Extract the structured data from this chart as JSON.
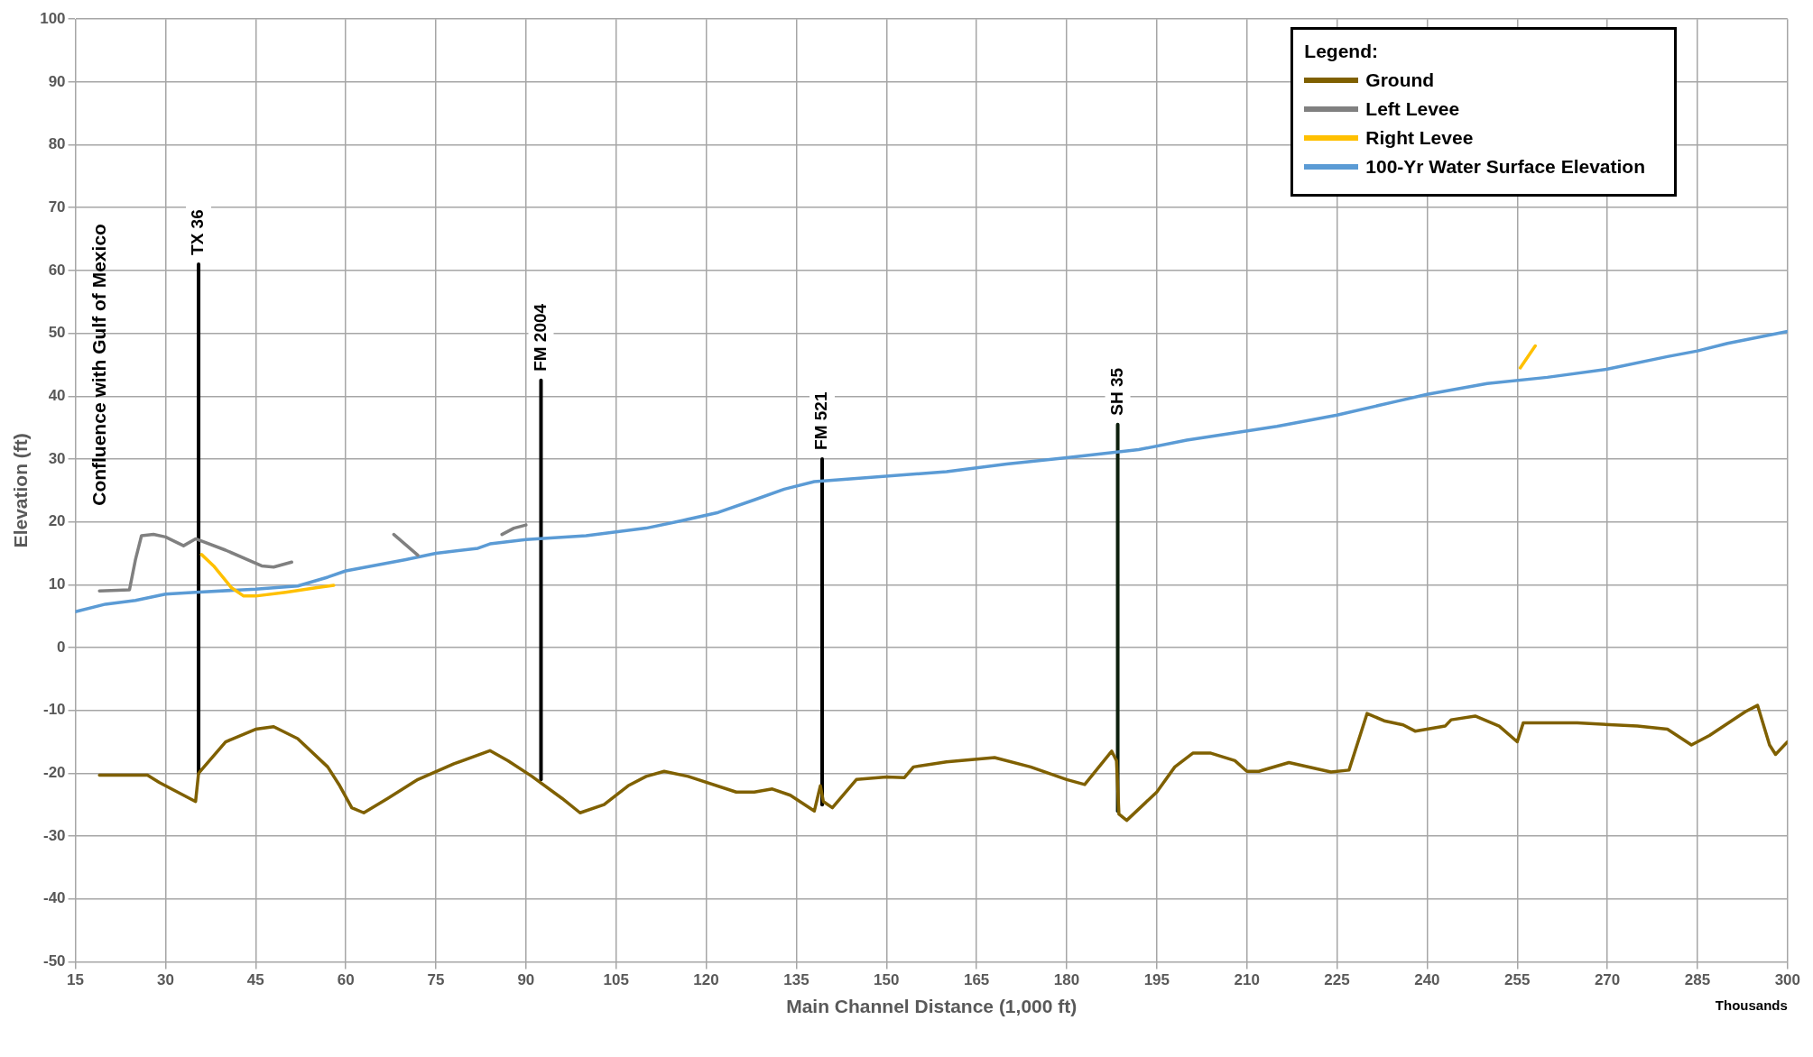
{
  "chart_data": {
    "type": "line",
    "xlabel": "Main Channel Distance (1,000 ft)",
    "ylabel": "Elevation (ft)",
    "legend_title": "Legend:",
    "legend": "top right",
    "grid": true,
    "marker": "none",
    "line_style": "solid",
    "xlim": [
      15,
      300
    ],
    "xticks": [
      15,
      30,
      45,
      60,
      75,
      90,
      105,
      120,
      135,
      150,
      165,
      180,
      195,
      210,
      225,
      240,
      255,
      270,
      285,
      300
    ],
    "ylim": [
      -50,
      100
    ],
    "yticks": [
      -50,
      -40,
      -30,
      -20,
      -10,
      0,
      10,
      20,
      30,
      40,
      50,
      60,
      70,
      80,
      90,
      100
    ],
    "annotations": [
      "Confluence with Gulf of Mexico",
      "Thousands"
    ],
    "series": [
      {
        "name": "Ground",
        "color": "#7f6000",
        "x": [
          19,
          27,
          29,
          33,
          35,
          35.5,
          40,
          45,
          48,
          52,
          57,
          59,
          61,
          63,
          67,
          72,
          78,
          84,
          87,
          91,
          96,
          99,
          103,
          107,
          110,
          113,
          117,
          125,
          128,
          131,
          134,
          138,
          139,
          139.5,
          141,
          145,
          150,
          153,
          154.5,
          160,
          168,
          174,
          180,
          183,
          187.5,
          188.3,
          188.7,
          190,
          195,
          198,
          201,
          204,
          208,
          210,
          212,
          217,
          224,
          227,
          230,
          233,
          236,
          238,
          243,
          244,
          248,
          252,
          255,
          256,
          265,
          275,
          280,
          284,
          287,
          293,
          295,
          297,
          298,
          300
        ],
        "values": [
          -20.3,
          -20.3,
          -21.5,
          -23.5,
          -24.5,
          -20,
          -15,
          -13,
          -12.6,
          -14.5,
          -19,
          -22,
          -25.5,
          -26.3,
          -24,
          -21,
          -18.5,
          -16.4,
          -18,
          -20.5,
          -24,
          -26.3,
          -25,
          -22,
          -20.5,
          -19.7,
          -20.5,
          -23,
          -23,
          -22.5,
          -23.5,
          -26,
          -22,
          -24.5,
          -25.5,
          -21,
          -20.6,
          -20.7,
          -19,
          -18.2,
          -17.5,
          -19,
          -21,
          -21.8,
          -16.5,
          -18,
          -26.5,
          -27.5,
          -23,
          -19,
          -16.8,
          -16.8,
          -18,
          -19.7,
          -19.7,
          -18.3,
          -19.8,
          -19.5,
          -10.5,
          -11.7,
          -12.3,
          -13.3,
          -12.5,
          -11.5,
          -10.9,
          -12.5,
          -15,
          -12,
          -12,
          -12.5,
          -13,
          -15.5,
          -14,
          -10.2,
          -9.2,
          -15.5,
          -17,
          -15
        ]
      },
      {
        "name": "Left Levee",
        "color": "#808080",
        "x": [
          19,
          24,
          25,
          26,
          28,
          30,
          33,
          35,
          40,
          46,
          48,
          51,
          60,
          68,
          72,
          80,
          86,
          88,
          90
        ],
        "values": [
          9,
          9.2,
          14,
          17.8,
          18,
          17.6,
          16.2,
          17.3,
          15.5,
          13,
          12.8,
          13.6,
          null,
          18,
          14.7,
          null,
          18,
          19,
          19.5
        ]
      },
      {
        "name": "Right Levee",
        "color": "#ffc000",
        "x": [
          36,
          38,
          41,
          43,
          45,
          50,
          55,
          58,
          150,
          255.5,
          258
        ],
        "values": [
          14.8,
          13,
          9.5,
          8.2,
          8.2,
          8.8,
          9.5,
          9.9,
          null,
          44.5,
          48
        ]
      },
      {
        "name": "100-Yr Water Surface Elevation",
        "color": "#5b9bd5",
        "x": [
          15,
          20,
          25,
          30,
          35,
          45,
          52,
          57,
          60,
          70,
          75,
          82,
          84,
          90,
          100,
          110,
          116,
          122,
          128,
          133,
          138,
          145,
          160,
          170,
          180,
          192,
          200,
          215,
          225,
          235,
          240,
          250,
          260,
          270,
          280,
          285,
          290,
          300
        ],
        "values": [
          5.7,
          6.9,
          7.5,
          8.5,
          8.8,
          9.3,
          9.8,
          11.2,
          12.2,
          14,
          15,
          15.8,
          16.5,
          17.2,
          17.8,
          19,
          20.2,
          21.5,
          23.5,
          25.2,
          26.4,
          26.9,
          28,
          29.2,
          30.2,
          31.5,
          33,
          35.2,
          37,
          39.2,
          40.3,
          42,
          43,
          44.3,
          46.3,
          47.2,
          48.4,
          50.3
        ]
      },
      {
        "name": "TX 36",
        "color": "#000000",
        "x": [
          35.5,
          35.5
        ],
        "values": [
          -20,
          61
        ]
      },
      {
        "name": "FM 2004",
        "color": "#000000",
        "x": [
          92.5,
          92.5
        ],
        "values": [
          -21,
          42.5
        ]
      },
      {
        "name": "FM 521",
        "color": "#000000",
        "x": [
          139.3,
          139.3
        ],
        "values": [
          -25,
          30
        ]
      },
      {
        "name": "SH 35",
        "color": "#0d1f0d",
        "x": [
          188.5,
          188.5
        ],
        "values": [
          -26,
          35.5
        ]
      }
    ]
  }
}
